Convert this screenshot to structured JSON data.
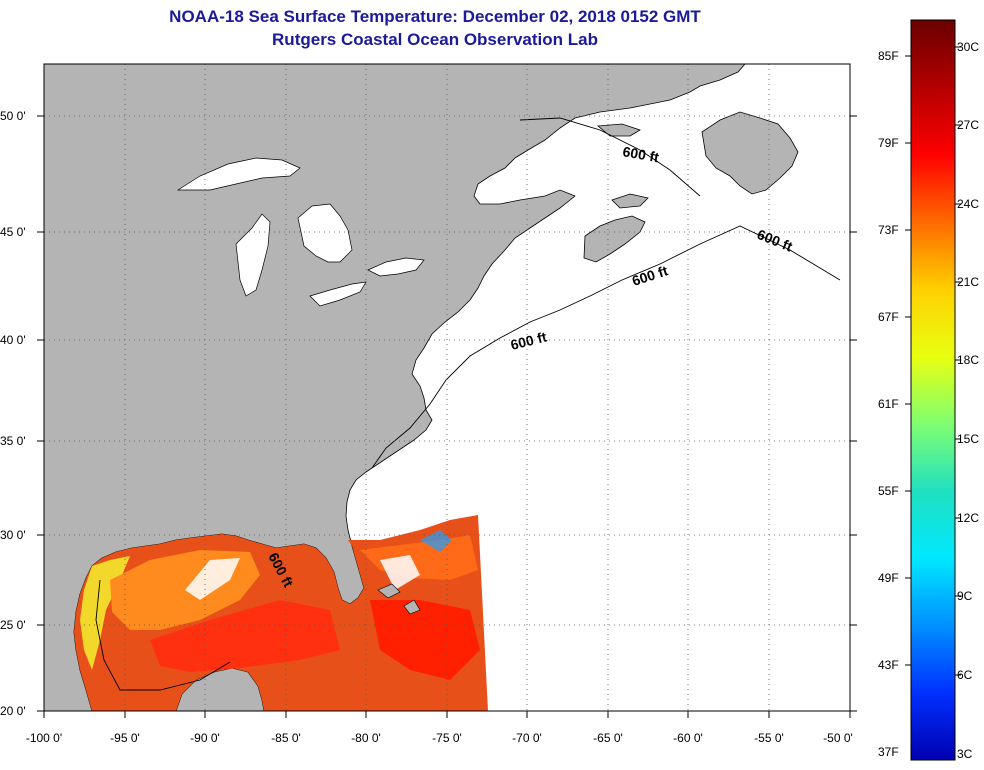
{
  "title": {
    "line1": "NOAA-18 Sea Surface Temperature:  December 02, 2018 0152 GMT",
    "line2": "Rutgers Coastal Ocean Observation Lab"
  },
  "map": {
    "longitude_ticks": [
      "-100 0'",
      "-95 0'",
      "-90 0'",
      "-85 0'",
      "-80 0'",
      "-75 0'",
      "-70 0'",
      "-65 0'",
      "-60 0'",
      "-55 0'",
      "-50 0'"
    ],
    "latitude_ticks": [
      "50 0'",
      "45 0'",
      "40 0'",
      "35 0'",
      "30 0'",
      "25 0'",
      "20 0'"
    ],
    "contour_labels": [
      "600 ft",
      "600 ft",
      "600 ft",
      "600 ft",
      "600 ft"
    ],
    "colors": {
      "land": "#b4b4b4",
      "ocean_no_data": "#ffffff",
      "warm_water": "#e83a1c",
      "hot_water": "#ff2000",
      "mid_water": "#ff7a18",
      "shelf_water": "#f2d82a"
    }
  },
  "colorbar": {
    "fahrenheit_labels": [
      "85F",
      "79F",
      "73F",
      "67F",
      "61F",
      "55F",
      "49F",
      "43F",
      "37F"
    ],
    "celsius_labels": [
      "30C",
      "27C",
      "24C",
      "21C",
      "18C",
      "15C",
      "12C",
      "9C",
      "6C",
      "3C"
    ],
    "gradient": [
      "#6a0000",
      "#b40000",
      "#ff0000",
      "#ff6a00",
      "#ffd000",
      "#e8ff10",
      "#80ff70",
      "#20e0c0",
      "#00e8ff",
      "#0090ff",
      "#0030ff",
      "#0000b0"
    ]
  }
}
